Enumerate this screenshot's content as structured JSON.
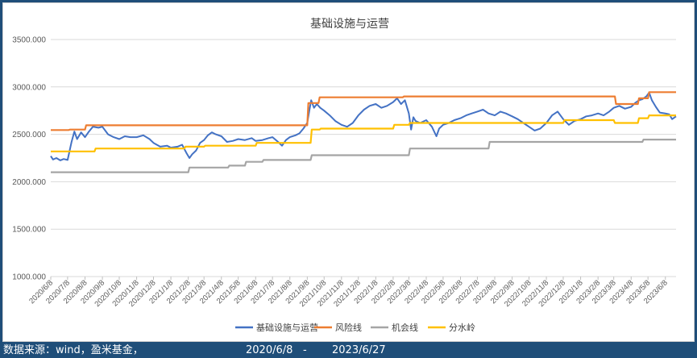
{
  "chart_data": {
    "type": "line",
    "title": "基础设施与运营",
    "xlabel": "",
    "ylabel": "",
    "ylim": [
      1000,
      3500
    ],
    "y_ticks": [
      "1000.000",
      "1500.000",
      "2000.000",
      "2500.000",
      "3000.000",
      "3500.000"
    ],
    "y_tick_values": [
      1000,
      1500,
      2000,
      2500,
      3000,
      3500
    ],
    "x_tick_labels": [
      "2020/6/8",
      "2020/7/8",
      "2020/8/8",
      "2020/9/8",
      "2020/10/8",
      "2020/11/8",
      "2020/12/8",
      "2021/1/8",
      "2021/2/8",
      "2021/3/8",
      "2021/4/8",
      "2021/5/8",
      "2021/6/8",
      "2021/7/8",
      "2021/8/8",
      "2021/9/8",
      "2021/10/8",
      "2021/11/8",
      "2021/12/8",
      "2022/1/8",
      "2022/2/8",
      "2022/3/8",
      "2022/4/8",
      "2022/5/8",
      "2022/6/8",
      "2022/7/8",
      "2022/8/8",
      "2022/9/8",
      "2022/10/8",
      "2022/11/8",
      "2022/12/8",
      "2023/1/8",
      "2023/2/8",
      "2023/3/8",
      "2023/4/8",
      "2023/5/8",
      "2023/6/8"
    ],
    "x_start": "2020/6/8",
    "x_end": "2023/6/27",
    "grid": true,
    "legend_position": "bottom",
    "series": [
      {
        "name": "基础设施与运营",
        "color": "#4472c4",
        "points": [
          [
            "2020/6/8",
            2270
          ],
          [
            "2020/6/12",
            2235
          ],
          [
            "2020/6/18",
            2250
          ],
          [
            "2020/6/25",
            2225
          ],
          [
            "2020/7/1",
            2240
          ],
          [
            "2020/7/8",
            2230
          ],
          [
            "2020/7/15",
            2420
          ],
          [
            "2020/7/20",
            2530
          ],
          [
            "2020/7/25",
            2450
          ],
          [
            "2020/8/1",
            2520
          ],
          [
            "2020/8/8",
            2470
          ],
          [
            "2020/8/15",
            2530
          ],
          [
            "2020/8/22",
            2580
          ],
          [
            "2020/9/1",
            2570
          ],
          [
            "2020/9/8",
            2580
          ],
          [
            "2020/9/18",
            2500
          ],
          [
            "2020/9/28",
            2470
          ],
          [
            "2020/10/8",
            2450
          ],
          [
            "2020/10/18",
            2480
          ],
          [
            "2020/10/28",
            2470
          ],
          [
            "2020/11/8",
            2470
          ],
          [
            "2020/11/20",
            2490
          ],
          [
            "2020/12/1",
            2450
          ],
          [
            "2020/12/8",
            2410
          ],
          [
            "2020/12/20",
            2370
          ],
          [
            "2021/1/1",
            2380
          ],
          [
            "2021/1/8",
            2360
          ],
          [
            "2021/1/20",
            2370
          ],
          [
            "2021/1/28",
            2390
          ],
          [
            "2021/2/5",
            2300
          ],
          [
            "2021/2/10",
            2250
          ],
          [
            "2021/2/15",
            2290
          ],
          [
            "2021/2/22",
            2330
          ],
          [
            "2021/3/1",
            2410
          ],
          [
            "2021/3/8",
            2440
          ],
          [
            "2021/3/15",
            2490
          ],
          [
            "2021/3/22",
            2520
          ],
          [
            "2021/3/29",
            2500
          ],
          [
            "2021/4/8",
            2480
          ],
          [
            "2021/4/18",
            2420
          ],
          [
            "2021/4/28",
            2430
          ],
          [
            "2021/5/8",
            2450
          ],
          [
            "2021/5/20",
            2440
          ],
          [
            "2021/6/1",
            2460
          ],
          [
            "2021/6/8",
            2430
          ],
          [
            "2021/6/20",
            2440
          ],
          [
            "2021/7/1",
            2460
          ],
          [
            "2021/7/8",
            2470
          ],
          [
            "2021/7/18",
            2420
          ],
          [
            "2021/7/25",
            2380
          ],
          [
            "2021/8/1",
            2440
          ],
          [
            "2021/8/8",
            2470
          ],
          [
            "2021/8/18",
            2490
          ],
          [
            "2021/8/25",
            2510
          ],
          [
            "2021/9/1",
            2560
          ],
          [
            "2021/9/8",
            2620
          ],
          [
            "2021/9/12",
            2760
          ],
          [
            "2021/9/15",
            2860
          ],
          [
            "2021/9/20",
            2780
          ],
          [
            "2021/9/25",
            2820
          ],
          [
            "2021/10/1",
            2780
          ],
          [
            "2021/10/8",
            2750
          ],
          [
            "2021/10/18",
            2700
          ],
          [
            "2021/10/28",
            2640
          ],
          [
            "2021/11/8",
            2600
          ],
          [
            "2021/11/18",
            2580
          ],
          [
            "2021/11/28",
            2620
          ],
          [
            "2021/12/8",
            2700
          ],
          [
            "2021/12/18",
            2760
          ],
          [
            "2021/12/28",
            2800
          ],
          [
            "2022/1/8",
            2820
          ],
          [
            "2022/1/18",
            2780
          ],
          [
            "2022/1/28",
            2800
          ],
          [
            "2022/2/8",
            2840
          ],
          [
            "2022/2/15",
            2880
          ],
          [
            "2022/2/22",
            2820
          ],
          [
            "2022/3/1",
            2860
          ],
          [
            "2022/3/5",
            2780
          ],
          [
            "2022/3/8",
            2720
          ],
          [
            "2022/3/12",
            2550
          ],
          [
            "2022/3/16",
            2680
          ],
          [
            "2022/3/20",
            2640
          ],
          [
            "2022/3/28",
            2620
          ],
          [
            "2022/4/8",
            2650
          ],
          [
            "2022/4/18",
            2580
          ],
          [
            "2022/4/26",
            2480
          ],
          [
            "2022/5/1",
            2560
          ],
          [
            "2022/5/8",
            2600
          ],
          [
            "2022/5/18",
            2620
          ],
          [
            "2022/5/28",
            2650
          ],
          [
            "2022/6/8",
            2670
          ],
          [
            "2022/6/18",
            2700
          ],
          [
            "2022/6/28",
            2720
          ],
          [
            "2022/7/8",
            2740
          ],
          [
            "2022/7/18",
            2760
          ],
          [
            "2022/7/28",
            2720
          ],
          [
            "2022/8/8",
            2700
          ],
          [
            "2022/8/18",
            2740
          ],
          [
            "2022/8/28",
            2720
          ],
          [
            "2022/9/8",
            2690
          ],
          [
            "2022/9/18",
            2660
          ],
          [
            "2022/9/28",
            2620
          ],
          [
            "2022/10/8",
            2580
          ],
          [
            "2022/10/18",
            2540
          ],
          [
            "2022/10/28",
            2560
          ],
          [
            "2022/11/8",
            2620
          ],
          [
            "2022/11/18",
            2700
          ],
          [
            "2022/11/28",
            2740
          ],
          [
            "2022/12/8",
            2660
          ],
          [
            "2022/12/18",
            2600
          ],
          [
            "2022/12/28",
            2640
          ],
          [
            "2023/1/8",
            2660
          ],
          [
            "2023/1/18",
            2690
          ],
          [
            "2023/1/28",
            2700
          ],
          [
            "2023/2/8",
            2720
          ],
          [
            "2023/2/18",
            2700
          ],
          [
            "2023/2/28",
            2740
          ],
          [
            "2023/3/8",
            2780
          ],
          [
            "2023/3/18",
            2800
          ],
          [
            "2023/3/28",
            2770
          ],
          [
            "2023/4/8",
            2790
          ],
          [
            "2023/4/15",
            2830
          ],
          [
            "2023/4/22",
            2860
          ],
          [
            "2023/4/28",
            2870
          ],
          [
            "2023/5/5",
            2900
          ],
          [
            "2023/5/10",
            2940
          ],
          [
            "2023/5/15",
            2860
          ],
          [
            "2023/5/22",
            2790
          ],
          [
            "2023/5/29",
            2730
          ],
          [
            "2023/6/8",
            2720
          ],
          [
            "2023/6/15",
            2710
          ],
          [
            "2023/6/20",
            2660
          ],
          [
            "2023/6/27",
            2690
          ]
        ]
      },
      {
        "name": "风险线",
        "color": "#ed7d31",
        "points": [
          [
            "2020/6/8",
            2545
          ],
          [
            "2020/7/8",
            2545
          ],
          [
            "2020/7/10",
            2545
          ],
          [
            "2020/7/12",
            2550
          ],
          [
            "2020/8/8",
            2550
          ],
          [
            "2020/8/10",
            2595
          ],
          [
            "2021/9/8",
            2595
          ],
          [
            "2021/9/10",
            2830
          ],
          [
            "2021/9/28",
            2830
          ],
          [
            "2021/9/30",
            2890
          ],
          [
            "2022/2/25",
            2890
          ],
          [
            "2022/2/27",
            2900
          ],
          [
            "2023/3/10",
            2900
          ],
          [
            "2023/3/12",
            2820
          ],
          [
            "2023/4/20",
            2820
          ],
          [
            "2023/4/22",
            2880
          ],
          [
            "2023/5/8",
            2880
          ],
          [
            "2023/5/10",
            2945
          ],
          [
            "2023/6/27",
            2945
          ]
        ]
      },
      {
        "name": "机会线",
        "color": "#a5a5a5",
        "points": [
          [
            "2020/6/8",
            2100
          ],
          [
            "2021/2/8",
            2100
          ],
          [
            "2021/2/10",
            2150
          ],
          [
            "2021/4/20",
            2150
          ],
          [
            "2021/4/22",
            2170
          ],
          [
            "2021/5/20",
            2170
          ],
          [
            "2021/5/22",
            2210
          ],
          [
            "2021/6/20",
            2210
          ],
          [
            "2021/6/22",
            2230
          ],
          [
            "2021/9/14",
            2230
          ],
          [
            "2021/9/16",
            2280
          ],
          [
            "2022/3/8",
            2280
          ],
          [
            "2022/3/10",
            2350
          ],
          [
            "2022/7/28",
            2350
          ],
          [
            "2022/7/30",
            2420
          ],
          [
            "2023/4/28",
            2420
          ],
          [
            "2023/4/30",
            2445
          ],
          [
            "2023/6/27",
            2445
          ]
        ]
      },
      {
        "name": "分水岭",
        "color": "#ffc000",
        "points": [
          [
            "2020/6/8",
            2320
          ],
          [
            "2020/8/25",
            2320
          ],
          [
            "2020/8/27",
            2350
          ],
          [
            "2021/2/1",
            2350
          ],
          [
            "2021/2/3",
            2370
          ],
          [
            "2021/3/8",
            2370
          ],
          [
            "2021/3/10",
            2380
          ],
          [
            "2021/6/8",
            2380
          ],
          [
            "2021/6/10",
            2410
          ],
          [
            "2021/9/14",
            2410
          ],
          [
            "2021/9/16",
            2550
          ],
          [
            "2021/9/30",
            2550
          ],
          [
            "2021/10/2",
            2560
          ],
          [
            "2022/2/8",
            2560
          ],
          [
            "2022/2/10",
            2600
          ],
          [
            "2022/3/8",
            2600
          ],
          [
            "2022/3/10",
            2620
          ],
          [
            "2022/12/8",
            2620
          ],
          [
            "2022/12/10",
            2650
          ],
          [
            "2023/3/8",
            2650
          ],
          [
            "2023/3/10",
            2620
          ],
          [
            "2023/4/20",
            2620
          ],
          [
            "2023/4/22",
            2670
          ],
          [
            "2023/5/8",
            2670
          ],
          [
            "2023/5/10",
            2700
          ],
          [
            "2023/6/27",
            2700
          ]
        ]
      }
    ]
  },
  "footer": {
    "source": "数据来源：wind，盈米基金，",
    "start_date": "2020/6/8",
    "separator": "-",
    "end_date": "2023/6/27"
  },
  "colors": {
    "background": "#1f4e79",
    "grid": "#d9d9d9"
  }
}
